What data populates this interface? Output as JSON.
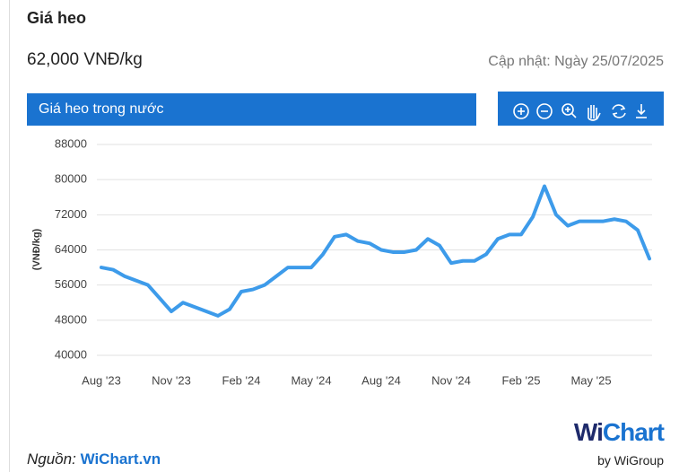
{
  "header": {
    "title": "Giá heo",
    "price": "62,000 VNĐ/kg",
    "updated": "Cập nhật: Ngày 25/07/2025"
  },
  "tab": "Giá heo trong nước",
  "chart_data": {
    "type": "line",
    "y_label": "(VNĐ/kg)",
    "color": "#3d9bea",
    "grid": true,
    "categories": [
      "Aug '23",
      null,
      null,
      null,
      null,
      null,
      "Nov '23",
      null,
      null,
      null,
      null,
      null,
      "Feb '24",
      null,
      null,
      null,
      null,
      null,
      "May '24",
      null,
      null,
      null,
      null,
      null,
      "Aug '24",
      null,
      null,
      null,
      null,
      null,
      "Nov '24",
      null,
      null,
      null,
      null,
      null,
      "Feb '25",
      null,
      null,
      null,
      null,
      null,
      "May '25",
      null,
      null,
      null,
      null,
      null
    ],
    "values": [
      60000,
      59500,
      58000,
      57000,
      56000,
      53000,
      50000,
      52000,
      51000,
      50000,
      49000,
      50500,
      54500,
      55000,
      56000,
      58000,
      60000,
      60000,
      60000,
      63000,
      67000,
      67500,
      66000,
      65500,
      64000,
      63500,
      63500,
      64000,
      66500,
      65000,
      61000,
      61500,
      61500,
      63000,
      66500,
      67500,
      67500,
      71500,
      78500,
      72000,
      69500,
      70500,
      70500,
      70500,
      71000,
      70500,
      68500,
      62000
    ],
    "ylim": [
      40000,
      88000
    ],
    "yticks": [
      40000,
      48000,
      56000,
      64000,
      72000,
      80000,
      88000
    ]
  },
  "source": {
    "label": "Nguồn:",
    "link": "WiChart.vn"
  },
  "logo": {
    "wi": "Wi",
    "chart": "Chart",
    "by": "by WiGroup"
  }
}
